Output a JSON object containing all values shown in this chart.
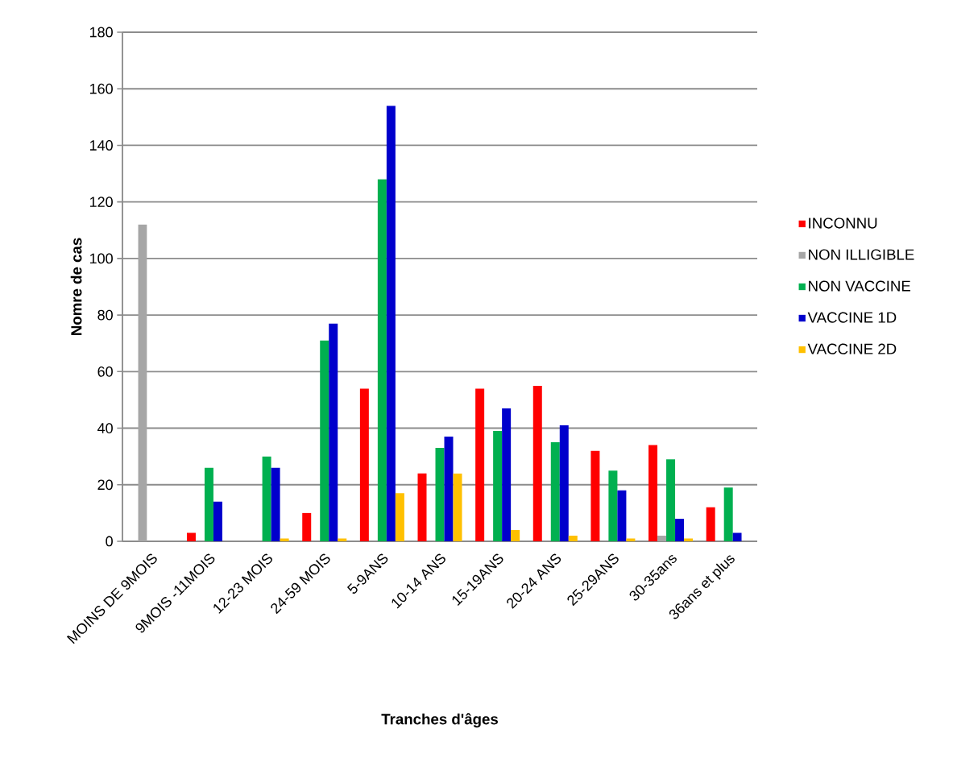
{
  "chart_data": {
    "type": "bar",
    "xlabel": "Tranches d'âges",
    "ylabel": "Nomre de cas",
    "categories": [
      "MOINS DE 9MOIS",
      "9MOIS -11MOIS",
      "12-23 MOIS",
      "24-59 MOIS",
      "5-9ANS",
      "10-14 ANS",
      "15-19ANS",
      "20-24 ANS",
      "25-29ANS",
      "30-35ans",
      "36ans et plus"
    ],
    "series": [
      {
        "name": "INCONNU",
        "color": "#ff0000",
        "values": [
          null,
          3,
          null,
          10,
          54,
          24,
          54,
          55,
          32,
          34,
          12
        ]
      },
      {
        "name": "NON ILLIGIBLE",
        "color": "#a6a6a6",
        "values": [
          112,
          null,
          null,
          null,
          null,
          null,
          null,
          null,
          null,
          2,
          null
        ]
      },
      {
        "name": "NON VACCINE",
        "color": "#00b050",
        "values": [
          null,
          26,
          30,
          71,
          128,
          33,
          39,
          35,
          25,
          29,
          19
        ]
      },
      {
        "name": "VACCINE 1D",
        "color": "#0000cc",
        "values": [
          null,
          14,
          26,
          77,
          154,
          37,
          47,
          41,
          18,
          8,
          3
        ]
      },
      {
        "name": "VACCINE 2D",
        "color": "#ffc000",
        "values": [
          null,
          null,
          1,
          1,
          17,
          24,
          4,
          2,
          1,
          1,
          null
        ]
      }
    ],
    "ylim": [
      0,
      180
    ],
    "yticks": [
      0,
      20,
      40,
      60,
      80,
      100,
      120,
      140,
      160,
      180
    ],
    "grid": "y",
    "legend": "right"
  }
}
